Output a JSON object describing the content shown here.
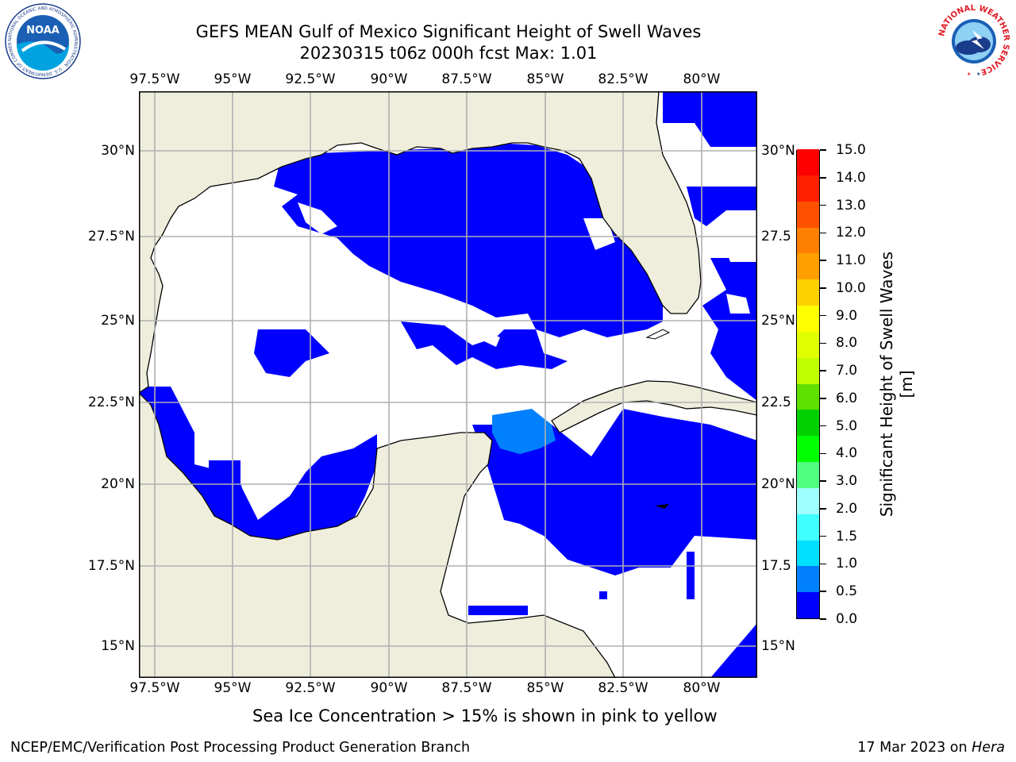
{
  "title": {
    "line1": "GEFS MEAN Gulf of Mexico Significant Height of Swell Waves",
    "line2": "20230315 t06z 000h fcst   Max: 1.01"
  },
  "map": {
    "lon_ticks": [
      "97.5°W",
      "95°W",
      "92.5°W",
      "90°W",
      "87.5°W",
      "85°W",
      "82.5°W",
      "80°W"
    ],
    "lat_ticks": [
      "30°N",
      "27.5°N",
      "25°N",
      "22.5°N",
      "20°N",
      "17.5°N",
      "15°N"
    ],
    "lat_ticks_right": [
      "30°N",
      "27.5",
      "25°N",
      "22.5",
      "20°N",
      "17.5",
      "15°N"
    ],
    "colors": {
      "land": "#efeedd",
      "ocean_low": "#0000ff",
      "ocean_mid": "#0080ff",
      "background": "#ffffff",
      "grid": "#b0b0b0"
    }
  },
  "colorbar": {
    "label": "Significant Height of Swell Waves [m]",
    "ticks": [
      "0.0",
      "0.5",
      "1.0",
      "1.5",
      "2.0",
      "3.0",
      "4.0",
      "5.0",
      "6.0",
      "7.0",
      "8.0",
      "9.0",
      "10.0",
      "11.0",
      "12.0",
      "13.0",
      "14.0",
      "15.0"
    ],
    "colors": [
      "#0000ff",
      "#0080ff",
      "#00e0ff",
      "#40ffff",
      "#a0ffff",
      "#50ff80",
      "#00ff00",
      "#00d000",
      "#60e000",
      "#c0ff00",
      "#e0ff00",
      "#ffff00",
      "#ffd000",
      "#ffa000",
      "#ff8000",
      "#ff5000",
      "#ff2000",
      "#ff0000"
    ]
  },
  "note": "Sea Ice Concentration > 15% is shown in pink to yellow",
  "footer": {
    "left": "NCEP/EMC/Verification Post Processing Product Generation Branch",
    "right_date": "17 Mar 2023 on ",
    "right_host": "Hera"
  },
  "logos": {
    "noaa_text": "NOAA",
    "noaa_ring": "NATIONAL OCEANIC AND ATMOSPHERIC ADMINISTRATION · U.S. DEPARTMENT OF COMMERCE",
    "nws_ring": "NATIONAL WEATHER SERVICE"
  }
}
